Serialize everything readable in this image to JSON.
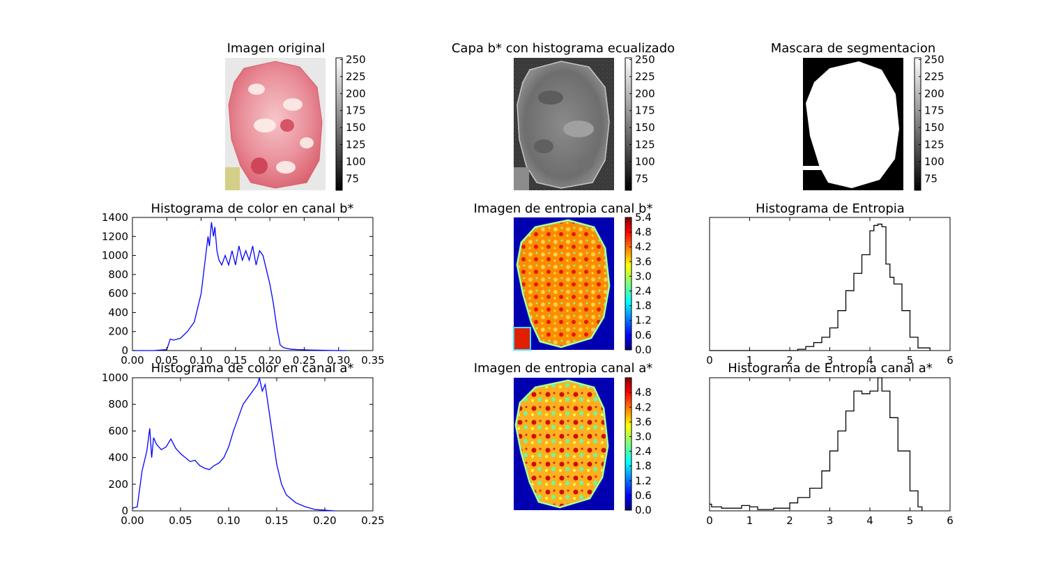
{
  "figure": {
    "titles": {
      "original": "Imagen original",
      "equalized": "Capa b* con histograma ecualizado",
      "mask": "Mascara de segmentacion",
      "hist_b": "Histograma de color en canal b*",
      "entropy_b": "Imagen de entropia canal b*",
      "hist_entropy": "Histograma de Entropia",
      "hist_a": "Histograma de color en canal a*",
      "entropy_a": "Imagen de entropia canal a*",
      "hist_entropy_a": "Histograma de Entropia canal a*"
    },
    "colorbar_gray_ticks": [
      "250",
      "225",
      "200",
      "175",
      "150",
      "125",
      "100",
      "75"
    ],
    "colorbar_jet_b_ticks": [
      "5.4",
      "4.8",
      "4.2",
      "3.6",
      "3.0",
      "2.4",
      "1.8",
      "1.2",
      "0.6",
      "0.0"
    ],
    "colorbar_jet_a_ticks": [
      "4.8",
      "4.2",
      "3.6",
      "3.0",
      "2.4",
      "1.8",
      "1.2",
      "0.6",
      "0.0"
    ],
    "colors": {
      "hist_line": "#0000ff",
      "entropy_line": "#000000",
      "tissue_pink": "#e88a96",
      "dark_bg": "#333333"
    }
  },
  "chart_data": [
    {
      "type": "line",
      "id": "hist_b",
      "title": "Histograma de color en canal b*",
      "xlabel": "",
      "ylabel": "",
      "xlim": [
        0,
        0.35
      ],
      "ylim": [
        0,
        1400
      ],
      "xticks": [
        "0.00",
        "0.05",
        "0.10",
        "0.15",
        "0.20",
        "0.25",
        "0.30",
        "0.35"
      ],
      "yticks": [
        "0",
        "200",
        "400",
        "600",
        "800",
        "1000",
        "1200",
        "1400"
      ],
      "color": "#0000ff",
      "x": [
        0.0,
        0.03,
        0.05,
        0.055,
        0.06,
        0.07,
        0.08,
        0.09,
        0.1,
        0.105,
        0.11,
        0.112,
        0.115,
        0.118,
        0.12,
        0.123,
        0.126,
        0.13,
        0.135,
        0.14,
        0.145,
        0.15,
        0.155,
        0.16,
        0.165,
        0.17,
        0.175,
        0.18,
        0.185,
        0.19,
        0.195,
        0.2,
        0.205,
        0.21,
        0.215,
        0.22,
        0.23,
        0.24,
        0.26,
        0.3,
        0.31
      ],
      "y": [
        0,
        0,
        10,
        120,
        110,
        130,
        200,
        300,
        600,
        900,
        1200,
        1100,
        1350,
        1200,
        1300,
        1050,
        950,
        900,
        1000,
        900,
        1050,
        900,
        1100,
        950,
        1050,
        950,
        1100,
        900,
        1050,
        1000,
        850,
        700,
        500,
        250,
        60,
        30,
        15,
        10,
        5,
        0,
        0
      ]
    },
    {
      "type": "line",
      "id": "hist_a",
      "title": "Histograma de color en canal a*",
      "xlabel": "",
      "ylabel": "",
      "xlim": [
        0,
        0.25
      ],
      "ylim": [
        0,
        1000
      ],
      "xticks": [
        "0.00",
        "0.05",
        "0.10",
        "0.15",
        "0.20",
        "0.25"
      ],
      "yticks": [
        "0",
        "200",
        "400",
        "600",
        "800",
        "1000"
      ],
      "color": "#0000ff",
      "x": [
        0.0,
        0.005,
        0.01,
        0.015,
        0.018,
        0.02,
        0.022,
        0.025,
        0.03,
        0.035,
        0.04,
        0.045,
        0.05,
        0.055,
        0.06,
        0.065,
        0.07,
        0.075,
        0.08,
        0.085,
        0.09,
        0.095,
        0.1,
        0.105,
        0.11,
        0.115,
        0.12,
        0.125,
        0.13,
        0.132,
        0.135,
        0.138,
        0.14,
        0.145,
        0.15,
        0.155,
        0.16,
        0.17,
        0.18,
        0.19,
        0.2,
        0.21
      ],
      "y": [
        20,
        30,
        300,
        450,
        620,
        400,
        550,
        500,
        460,
        480,
        540,
        470,
        430,
        400,
        370,
        380,
        340,
        320,
        310,
        340,
        360,
        400,
        480,
        600,
        700,
        800,
        850,
        900,
        950,
        1000,
        900,
        950,
        850,
        600,
        350,
        200,
        120,
        60,
        30,
        10,
        5,
        0
      ]
    },
    {
      "type": "line",
      "id": "hist_entropy",
      "title": "Histograma de Entropia",
      "xlabel": "",
      "ylabel": "",
      "xlim": [
        0,
        6
      ],
      "ylim": [
        0,
        1
      ],
      "xticks": [
        "0",
        "1",
        "2",
        "3",
        "4",
        "5",
        "6"
      ],
      "yticks": [],
      "color": "#000000",
      "x": [
        0.0,
        2.0,
        2.2,
        2.4,
        2.6,
        2.8,
        3.0,
        3.2,
        3.4,
        3.6,
        3.8,
        4.0,
        4.1,
        4.2,
        4.3,
        4.4,
        4.5,
        4.6,
        4.8,
        5.0,
        5.2,
        5.5
      ],
      "y": [
        0.0,
        0.0,
        0.01,
        0.03,
        0.06,
        0.1,
        0.17,
        0.3,
        0.45,
        0.58,
        0.72,
        0.9,
        0.94,
        0.95,
        0.93,
        0.65,
        0.55,
        0.5,
        0.3,
        0.1,
        0.02,
        0.0
      ]
    },
    {
      "type": "line",
      "id": "hist_entropy_a",
      "title": "Histograma de Entropia canal a*",
      "xlabel": "",
      "ylabel": "",
      "xlim": [
        0,
        6
      ],
      "ylim": [
        0,
        1
      ],
      "xticks": [
        "0",
        "1",
        "2",
        "3",
        "4",
        "5",
        "6"
      ],
      "yticks": [],
      "color": "#000000",
      "x": [
        0.0,
        0.05,
        0.3,
        0.8,
        1.0,
        1.2,
        1.6,
        2.0,
        2.2,
        2.5,
        2.8,
        3.0,
        3.2,
        3.4,
        3.6,
        3.8,
        4.0,
        4.2,
        4.3,
        4.5,
        4.7,
        5.0,
        5.2,
        5.3
      ],
      "y": [
        0.05,
        0.03,
        0.02,
        0.04,
        0.03,
        0.01,
        0.02,
        0.06,
        0.1,
        0.17,
        0.3,
        0.45,
        0.6,
        0.75,
        0.9,
        0.88,
        0.9,
        1.0,
        0.9,
        0.7,
        0.45,
        0.15,
        0.03,
        0.0
      ]
    }
  ]
}
